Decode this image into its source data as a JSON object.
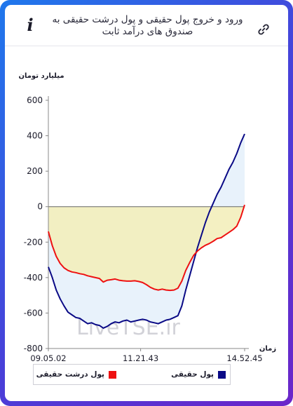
{
  "header": {
    "title": "ورود و خروج پول حقیقی و پول درشت حقیقی به صندوق های درآمد ثابت",
    "info_glyph": "i",
    "info_icon": "info-icon",
    "link_icon": "link-icon"
  },
  "watermark": "LiveTSE.ir",
  "colors": {
    "frame_start": "#1f78ec",
    "frame_end": "#6b26c9",
    "series_real": "#0a0a86",
    "series_big": "#ee1111",
    "fill_real": "#e8f2fb",
    "fill_big": "#f3eebb"
  },
  "chart_data": {
    "type": "area",
    "ylabel": "میلیارد تومان",
    "xlabel": "زمان",
    "ylim": [
      -800,
      600
    ],
    "yticks": [
      600,
      400,
      200,
      0,
      -200,
      -400,
      -600,
      -800
    ],
    "xticks": [
      "09.05.02",
      "11.21.43",
      "14.52.45"
    ],
    "grid": false,
    "legend_position": "bottom",
    "series": [
      {
        "name": "پول حقیقی",
        "color": "#0a0a86",
        "values": [
          -340,
          -400,
          -470,
          -520,
          -560,
          -595,
          -610,
          -625,
          -630,
          -645,
          -660,
          -655,
          -665,
          -670,
          -685,
          -675,
          -660,
          -650,
          -655,
          -645,
          -640,
          -650,
          -645,
          -640,
          -635,
          -640,
          -650,
          -655,
          -660,
          -650,
          -640,
          -635,
          -625,
          -615,
          -560,
          -470,
          -390,
          -310,
          -230,
          -160,
          -90,
          -30,
          20,
          70,
          110,
          160,
          210,
          250,
          300,
          360,
          410
        ]
      },
      {
        "name": "پول درشت حقیقی",
        "color": "#ee1111",
        "values": [
          -140,
          -220,
          -280,
          -320,
          -345,
          -360,
          -368,
          -372,
          -378,
          -382,
          -390,
          -395,
          -400,
          -405,
          -425,
          -415,
          -412,
          -408,
          -415,
          -418,
          -420,
          -420,
          -418,
          -422,
          -428,
          -440,
          -455,
          -465,
          -470,
          -465,
          -470,
          -472,
          -470,
          -460,
          -420,
          -360,
          -315,
          -275,
          -250,
          -232,
          -218,
          -208,
          -195,
          -180,
          -175,
          -160,
          -145,
          -130,
          -110,
          -60,
          10
        ]
      }
    ]
  }
}
